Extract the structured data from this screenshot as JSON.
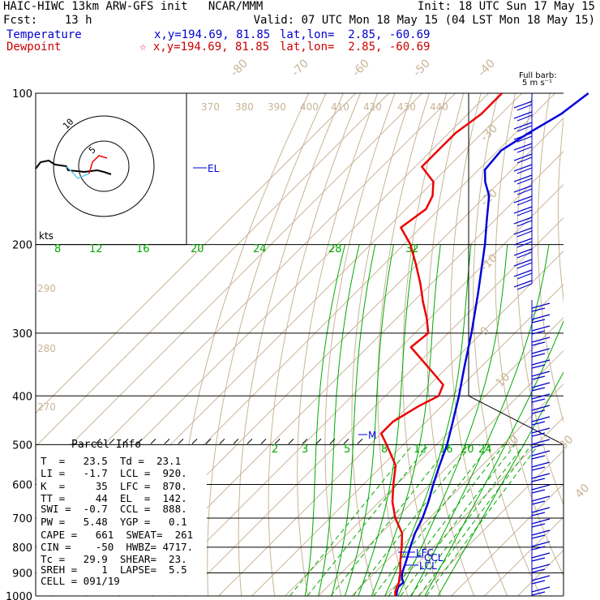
{
  "header": {
    "line1_left": "HAIC-HIWC 13km ARW-GFS init   NCAR/MMM",
    "line1_right": "Init: 18 UTC Sun 17 May 15",
    "line2_left": "Fcst:    13 h",
    "line2_right": "Valid: 07 UTC Mon 18 May 15 (04 LST Mon 18 May 15)",
    "temp_label": "Temperature",
    "temp_xy": "x,y=194.69, 81.85",
    "temp_latlon": "lat,lon=  2.85, -60.69",
    "dew_label": "Dewpoint",
    "dew_xy": "☆ x,y=194.69, 81.85",
    "dew_latlon": "lat,lon=  2.85, -60.69"
  },
  "colors": {
    "temperature": "#0000dd",
    "dewpoint": "#ee0000",
    "mixing_ratio": "#00aa00",
    "dry_adiabat": "#c8b496",
    "isotherm": "#c8b496",
    "moist_adiabat": "#00aa00",
    "barbs": "#0000cc"
  },
  "barb_key": {
    "title": "Full barb:",
    "unit": "5 m s⁻¹"
  },
  "hodograph": {
    "label": "kts",
    "ring_labels": [
      "5",
      "10"
    ]
  },
  "parcel": {
    "title": "Parcel Info",
    "rows": [
      "T  =   23.5  Td =  23.1",
      "LI =   -1.7  LCL =  920.",
      "K  =     35  LFC =  870.",
      "TT =     44  EL  =  142.",
      "SWI =  -0.7  CCL =  888.",
      "PW =   5.48  YGP =   0.1",
      "CAPE =   661  SWEAT=  261",
      "CIN =    -50  HWBZ= 4717.",
      "Tc =   29.9  SHEAR=  23.",
      "SREH =    1  LAPSE=  5.5",
      "CELL = 091/19"
    ]
  },
  "chart_data": {
    "type": "line",
    "title": "Skew-T log-P",
    "pressure_ticks": [
      "100",
      "200",
      "300",
      "400",
      "500",
      "600",
      "700",
      "800",
      "900",
      "1000"
    ],
    "isotherm_labels": [
      "-80",
      "-70",
      "-60",
      "-50",
      "-40",
      "-30",
      "-20",
      "-10",
      "0",
      "10",
      "20",
      "30",
      "40"
    ],
    "theta_labels": [
      "370",
      "380",
      "390",
      "400",
      "410",
      "420",
      "430",
      "440",
      "290",
      "280",
      "270"
    ],
    "mixing_ratio_labels_upper": [
      "8",
      "12",
      "16",
      "20",
      "24",
      "28",
      "32"
    ],
    "mixing_ratio_labels_lower": [
      "2",
      "3",
      "5",
      "8",
      "12",
      "16",
      "20",
      "24"
    ],
    "level_markers": [
      "EL",
      "M",
      "LFC",
      "CCL",
      "LCL"
    ],
    "series": [
      {
        "name": "Temperature",
        "pressure": [
          1000,
          980,
          960,
          940,
          920,
          900,
          850,
          800,
          750,
          700,
          650,
          600,
          550,
          500,
          450,
          400,
          350,
          300,
          250,
          200,
          180,
          160,
          150,
          142,
          130,
          120,
          110,
          100
        ],
        "temperature": [
          23.5,
          22.3,
          21.3,
          21.5,
          19.6,
          18.3,
          15.8,
          13.0,
          10.2,
          7.9,
          4.8,
          1.0,
          -2.8,
          -6.8,
          -12.0,
          -17.9,
          -25.0,
          -33.0,
          -43.0,
          -55.6,
          -62.0,
          -69.0,
          -74.4,
          -78.1,
          -79.0,
          -76.0,
          -72.0,
          -70.0
        ]
      },
      {
        "name": "Dewpoint",
        "pressure": [
          1000,
          980,
          960,
          940,
          920,
          900,
          850,
          800,
          750,
          700,
          650,
          600,
          550,
          500,
          475,
          450,
          420,
          400,
          380,
          350,
          320,
          300,
          280,
          260,
          240,
          220,
          200,
          185,
          170,
          160,
          150,
          140,
          130,
          120,
          110,
          100
        ],
        "dewpoint": [
          23.1,
          21.8,
          21.0,
          20.2,
          18.9,
          17.7,
          14.0,
          10.4,
          6.3,
          -0.3,
          -6.0,
          -11.0,
          -16.0,
          -25.0,
          -30.0,
          -30.0,
          -27.0,
          -24.0,
          -26.0,
          -36.0,
          -47.0,
          -46.0,
          -51.0,
          -57.0,
          -63.0,
          -70.0,
          -78.0,
          -86.0,
          -84.0,
          -86.0,
          -90.0,
          -98.0,
          -98.0,
          -98.0,
          -96.0,
          -96.0
        ]
      }
    ],
    "wind_barbs": [
      {
        "p": 1000,
        "dir": 100,
        "speed": 8
      },
      {
        "p": 925,
        "dir": 95,
        "speed": 14
      },
      {
        "p": 850,
        "dir": 90,
        "speed": 14
      },
      {
        "p": 700,
        "dir": 90,
        "speed": 13
      },
      {
        "p": 600,
        "dir": 100,
        "speed": 12
      },
      {
        "p": 500,
        "dir": 95,
        "speed": 10
      },
      {
        "p": 400,
        "dir": 90,
        "speed": 9
      },
      {
        "p": 300,
        "dir": 80,
        "speed": 8
      },
      {
        "p": 200,
        "dir": 270,
        "speed": 10
      },
      {
        "p": 150,
        "dir": 270,
        "speed": 12
      },
      {
        "p": 100,
        "dir": 260,
        "speed": 12
      }
    ],
    "ylim": [
      1000,
      100
    ],
    "xlim_temperature_at_1000": [
      -40,
      50
    ],
    "grid": true,
    "legend": "top-left"
  }
}
